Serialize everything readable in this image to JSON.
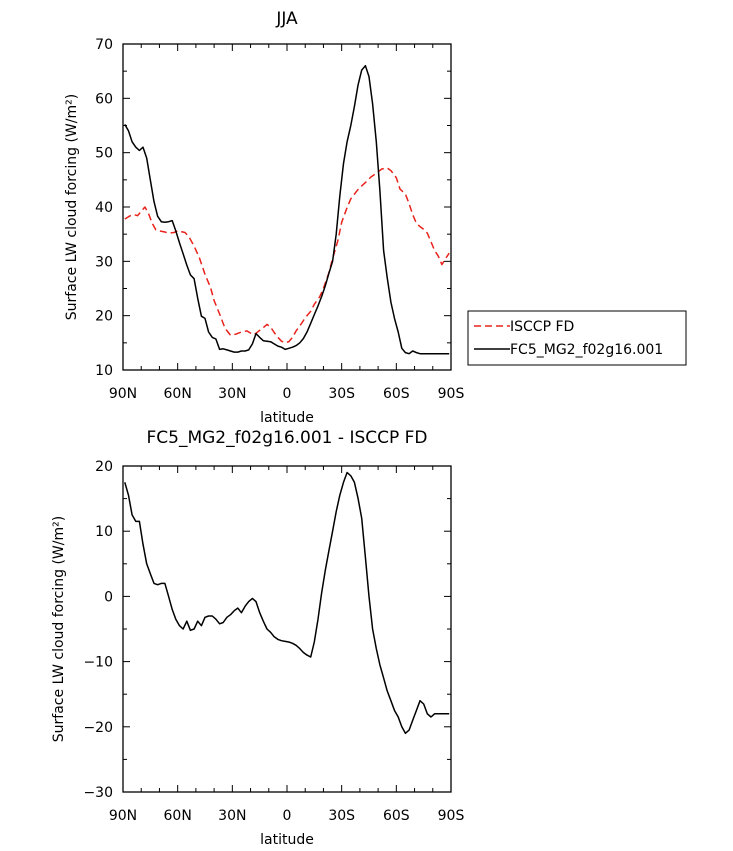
{
  "chart_data": [
    {
      "type": "line",
      "title": "JJA",
      "xlabel": "latitude",
      "ylabel": "Surface LW cloud forcing (W/m²)",
      "xlim": [
        90,
        -90
      ],
      "ylim": [
        10,
        70
      ],
      "xticks": [
        90,
        60,
        30,
        0,
        -30,
        -60,
        -90
      ],
      "xtick_labels": [
        "90N",
        "60N",
        "30N",
        "0",
        "30S",
        "60S",
        "90S"
      ],
      "yticks": [
        10,
        20,
        30,
        40,
        50,
        60,
        70
      ],
      "ytick_labels": [
        "10",
        "20",
        "30",
        "40",
        "50",
        "60",
        "70"
      ],
      "legend_position": "right",
      "series": [
        {
          "name": "ISCCP FD",
          "color": "#e8231c",
          "dash": "dashed",
          "x": [
            89,
            86,
            84,
            82,
            80,
            78,
            76,
            74,
            72,
            70,
            67,
            65,
            62,
            60,
            56,
            54,
            51,
            48,
            45,
            42,
            40,
            37,
            34,
            31,
            28,
            25,
            22,
            20,
            18,
            15,
            13,
            11,
            9,
            7,
            5,
            3,
            1,
            -1,
            -3,
            -5,
            -8,
            -10,
            -13,
            -15,
            -18,
            -20,
            -23,
            -25,
            -28,
            -30,
            -33,
            -35,
            -38,
            -40,
            -43,
            -46,
            -49,
            -52,
            -55,
            -57,
            -60,
            -62,
            -65,
            -67,
            -69,
            -71,
            -73,
            -75,
            -77,
            -79,
            -81,
            -83,
            -85,
            -87,
            -89
          ],
          "y": [
            37.8,
            38.4,
            38.6,
            38.4,
            39.2,
            40.0,
            38.8,
            37.0,
            35.8,
            35.6,
            35.4,
            35.2,
            35.3,
            35.6,
            35.3,
            34.6,
            32.8,
            30.6,
            27.6,
            25.2,
            22.8,
            20.3,
            17.7,
            16.4,
            16.6,
            17.0,
            17.2,
            16.8,
            16.5,
            17.3,
            17.8,
            18.4,
            17.9,
            16.9,
            16.0,
            15.3,
            15.0,
            15.2,
            16.0,
            17.2,
            18.6,
            19.6,
            20.8,
            22.1,
            23.5,
            25.0,
            27.9,
            30.5,
            33.9,
            37.2,
            39.9,
            41.5,
            42.8,
            43.6,
            44.5,
            45.5,
            46.2,
            47.0,
            47.2,
            46.7,
            45.4,
            43.3,
            42.4,
            40.6,
            38.6,
            37.0,
            36.4,
            35.9,
            35.2,
            33.6,
            32.0,
            31.0,
            29.4,
            30.5,
            31.5
          ]
        },
        {
          "name": "FC5_MG2_f02g16.001",
          "color": "#000000",
          "dash": "solid",
          "x": [
            89,
            87,
            85,
            83,
            81,
            79,
            77,
            75,
            73,
            71,
            69,
            67,
            65,
            63,
            61,
            59,
            57,
            55,
            53,
            51,
            49,
            47,
            45,
            43,
            41,
            39,
            37,
            35,
            33,
            31,
            29,
            27,
            25,
            23,
            21,
            19,
            17,
            15,
            13,
            11,
            9,
            7,
            5,
            3,
            1,
            -1,
            -3,
            -5,
            -7,
            -9,
            -11,
            -13,
            -15,
            -17,
            -19,
            -21,
            -23,
            -25,
            -27,
            -29,
            -31,
            -33,
            -35,
            -37,
            -39,
            -41,
            -43,
            -45,
            -47,
            -49,
            -51,
            -53,
            -55,
            -57,
            -59,
            -61,
            -63,
            -65,
            -67,
            -69,
            -71,
            -73,
            -75,
            -77,
            -79,
            -81,
            -83,
            -85,
            -87,
            -89
          ],
          "y": [
            55.2,
            54.0,
            52.0,
            51.0,
            50.4,
            51.0,
            49.0,
            45.0,
            41.0,
            38.3,
            37.3,
            37.2,
            37.3,
            37.5,
            35.6,
            33.4,
            31.4,
            29.3,
            27.5,
            26.8,
            23.2,
            19.9,
            19.5,
            17.0,
            16.0,
            15.7,
            13.8,
            13.9,
            13.7,
            13.5,
            13.3,
            13.3,
            13.5,
            13.5,
            13.7,
            14.8,
            16.7,
            16.0,
            15.4,
            15.3,
            15.2,
            14.8,
            14.4,
            14.2,
            13.8,
            14.0,
            14.2,
            14.5,
            15.0,
            15.8,
            17.0,
            18.6,
            20.2,
            21.8,
            23.5,
            25.5,
            27.8,
            30.0,
            35.0,
            42.0,
            48.0,
            52.0,
            55.0,
            58.5,
            62.5,
            65.2,
            66.0,
            64.0,
            59.0,
            52.0,
            43.0,
            32.0,
            27.0,
            22.5,
            19.5,
            17.0,
            14.0,
            13.2,
            13.0,
            13.5,
            13.2,
            13.0,
            13.0,
            13.0,
            13.0,
            13.0,
            13.0,
            13.0,
            13.0,
            13.0
          ]
        }
      ]
    },
    {
      "type": "line",
      "title": "FC5_MG2_f02g16.001 - ISCCP FD",
      "xlabel": "latitude",
      "ylabel": "Surface LW cloud forcing (W/m²)",
      "xlim": [
        90,
        -90
      ],
      "ylim": [
        -30,
        20
      ],
      "xticks": [
        90,
        60,
        30,
        0,
        -30,
        -60,
        -90
      ],
      "xtick_labels": [
        "90N",
        "60N",
        "30N",
        "0",
        "30S",
        "60S",
        "90S"
      ],
      "yticks": [
        -30,
        -20,
        -10,
        0,
        10,
        20
      ],
      "ytick_labels": [
        "−30",
        "−20",
        "−10",
        "0",
        "10",
        "20"
      ],
      "series": [
        {
          "color": "#000000",
          "dash": "solid",
          "x": [
            89,
            87,
            85,
            83,
            81,
            79,
            77,
            75,
            73,
            71,
            69,
            67,
            65,
            63,
            61,
            59,
            57,
            55,
            53,
            51,
            49,
            47,
            45,
            43,
            41,
            39,
            37,
            35,
            33,
            31,
            29,
            27,
            25,
            23,
            21,
            19,
            17,
            15,
            13,
            11,
            9,
            7,
            5,
            3,
            1,
            -1,
            -3,
            -5,
            -7,
            -9,
            -11,
            -13,
            -15,
            -17,
            -19,
            -21,
            -23,
            -25,
            -27,
            -29,
            -31,
            -33,
            -35,
            -37,
            -39,
            -41,
            -43,
            -45,
            -47,
            -49,
            -51,
            -53,
            -55,
            -57,
            -59,
            -61,
            -63,
            -65,
            -67,
            -69,
            -71,
            -73,
            -75,
            -77,
            -79,
            -81,
            -83,
            -85,
            -87,
            -89
          ],
          "y": [
            17.5,
            15.5,
            12.5,
            11.5,
            11.5,
            8.0,
            5.0,
            3.5,
            2.0,
            1.8,
            2.0,
            2.0,
            0.0,
            -2.0,
            -3.5,
            -4.5,
            -5.0,
            -3.8,
            -5.2,
            -5.0,
            -3.8,
            -4.5,
            -3.2,
            -3.0,
            -3.0,
            -3.5,
            -4.2,
            -4.0,
            -3.2,
            -2.8,
            -2.2,
            -1.8,
            -2.5,
            -1.5,
            -0.8,
            -0.3,
            -0.8,
            -2.5,
            -3.8,
            -5.0,
            -5.5,
            -6.2,
            -6.6,
            -6.8,
            -6.9,
            -7.0,
            -7.2,
            -7.5,
            -8.0,
            -8.6,
            -9.0,
            -9.3,
            -7.0,
            -3.5,
            0.5,
            4.0,
            7.0,
            10.0,
            13.0,
            15.5,
            17.5,
            19.0,
            18.5,
            17.5,
            15.0,
            12.0,
            6.0,
            0.0,
            -5.0,
            -8.0,
            -10.5,
            -12.5,
            -14.5,
            -16.0,
            -17.5,
            -18.5,
            -20.0,
            -21.0,
            -20.5,
            -19.0,
            -17.5,
            -16.0,
            -16.5,
            -18.0,
            -18.5,
            -18.0,
            -18.0,
            -18.0,
            -18.0,
            -18.0
          ]
        }
      ]
    }
  ]
}
